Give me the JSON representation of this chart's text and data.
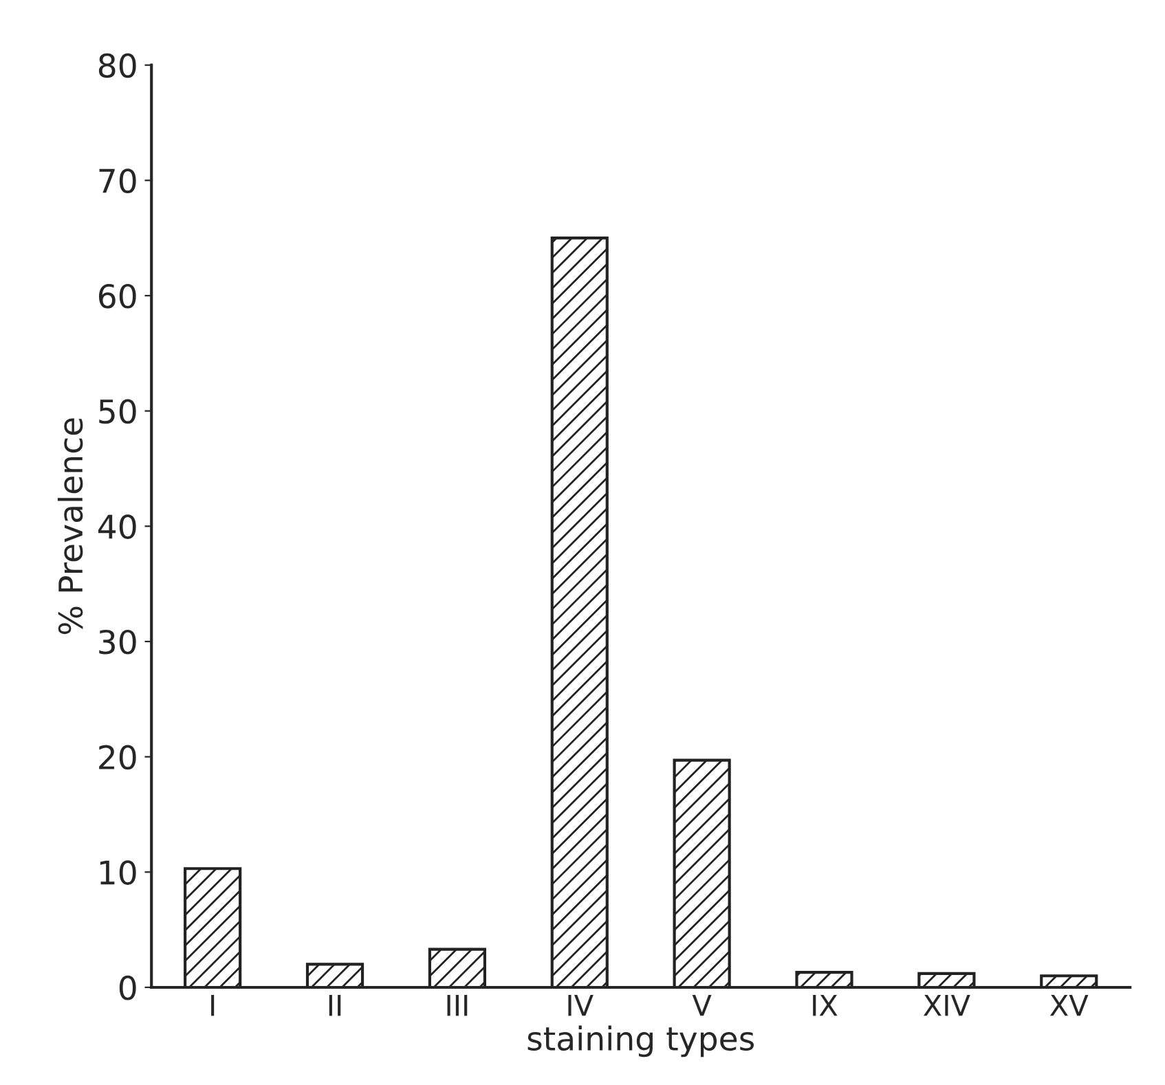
{
  "chart_data": {
    "type": "bar",
    "xlabel": "staining types",
    "ylabel": "% Prevalence",
    "categories": [
      "I",
      "II",
      "III",
      "IV",
      "V",
      "IX",
      "XIV",
      "XV"
    ],
    "values": [
      10.3,
      2,
      3.3,
      65,
      19.7,
      1.3,
      1.2,
      1
    ],
    "color": "#222222",
    "ylim": [
      0,
      80
    ],
    "yticks": [
      0,
      10,
      20,
      30,
      40,
      50,
      60,
      70,
      80
    ],
    "grid": false
  }
}
